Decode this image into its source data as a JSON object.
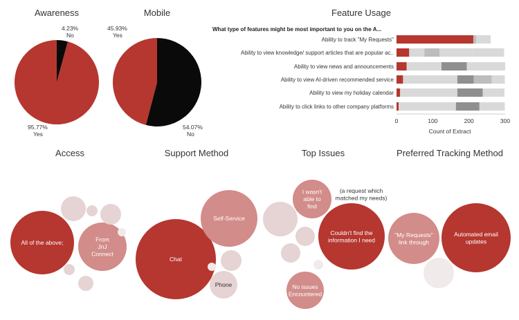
{
  "colors": {
    "red": "#b5372f",
    "black": "#0a0a0a",
    "pink": "#d28c89",
    "pale": "#e6d3d3",
    "faint": "#f1eaea",
    "bar_grey_light": "#d9d9d9",
    "bar_grey_mid": "#bdbdbd",
    "bar_grey_dark": "#8f8f8f"
  },
  "chart_data": [
    {
      "type": "pie",
      "title": "Awareness",
      "slices": [
        {
          "label": "Yes",
          "value": 95.77,
          "display": "95.77%",
          "color": "#b5372f"
        },
        {
          "label": "No",
          "value": 4.23,
          "display": "4.23%",
          "color": "#0a0a0a"
        }
      ]
    },
    {
      "type": "pie",
      "title": "Mobile",
      "slices": [
        {
          "label": "Yes",
          "value": 45.93,
          "display": "45.93%",
          "color": "#b5372f"
        },
        {
          "label": "No",
          "value": 54.07,
          "display": "54.07%",
          "color": "#0a0a0a"
        }
      ]
    },
    {
      "type": "bar",
      "title": "Feature Usage",
      "row_header": "What type of features might be most important to you on the A...",
      "xlabel": "Count of Extract",
      "xlim": [
        0,
        300
      ],
      "xticks": [
        0,
        100,
        200,
        300
      ],
      "categories": [
        "Ability to track \"My Requests\"",
        "Ability to view knowledge/ support articles that are popular ac..",
        "Ability to view news and announcements",
        "Ability to view AI-driven recommended service",
        "Ability to view my holiday calendar",
        "Ability to click links to other company platforms"
      ],
      "segments": [
        [
          {
            "value": 212,
            "tone": "red"
          },
          {
            "value": 8,
            "tone": "mid"
          },
          {
            "value": 40,
            "tone": "light"
          }
        ],
        [
          {
            "value": 35,
            "tone": "red"
          },
          {
            "value": 42,
            "tone": "light"
          },
          {
            "value": 42,
            "tone": "mid"
          },
          {
            "value": 90,
            "tone": "light"
          },
          {
            "value": 88,
            "tone": "light"
          }
        ],
        [
          {
            "value": 28,
            "tone": "red"
          },
          {
            "value": 96,
            "tone": "light"
          },
          {
            "value": 70,
            "tone": "dark"
          },
          {
            "value": 110,
            "tone": "light"
          }
        ],
        [
          {
            "value": 18,
            "tone": "red"
          },
          {
            "value": 150,
            "tone": "light"
          },
          {
            "value": 45,
            "tone": "dark"
          },
          {
            "value": 50,
            "tone": "mid"
          },
          {
            "value": 36,
            "tone": "light"
          }
        ],
        [
          {
            "value": 10,
            "tone": "red"
          },
          {
            "value": 158,
            "tone": "light"
          },
          {
            "value": 70,
            "tone": "dark"
          },
          {
            "value": 60,
            "tone": "light"
          }
        ],
        [
          {
            "value": 6,
            "tone": "red"
          },
          {
            "value": 158,
            "tone": "light"
          },
          {
            "value": 65,
            "tone": "dark"
          },
          {
            "value": 70,
            "tone": "light"
          }
        ]
      ]
    },
    {
      "type": "bubble",
      "title": "Access",
      "bubbles": [
        {
          "label": "All of the above;",
          "tone": "red"
        },
        {
          "label": "From JnJ Connect",
          "tone": "pink"
        },
        {
          "label": "",
          "tone": "pale"
        },
        {
          "label": "",
          "tone": "pale"
        },
        {
          "label": "",
          "tone": "pale"
        },
        {
          "label": "",
          "tone": "pale"
        },
        {
          "label": "",
          "tone": "pale"
        },
        {
          "label": "",
          "tone": "faint"
        }
      ]
    },
    {
      "type": "bubble",
      "title": "Support Method",
      "bubbles": [
        {
          "label": "Chat",
          "tone": "red"
        },
        {
          "label": "Self-Service",
          "tone": "pink"
        },
        {
          "label": "Phone",
          "tone": "pale"
        },
        {
          "label": "",
          "tone": "pale"
        },
        {
          "label": "",
          "tone": "faint"
        }
      ]
    },
    {
      "type": "bubble",
      "title": "Top Issues",
      "bubbles": [
        {
          "label": "Couldn't find the information I need",
          "tone": "red"
        },
        {
          "label": "I wasn't able to find",
          "tone": "pink"
        },
        {
          "label": "No issues Encountered",
          "tone": "pink"
        },
        {
          "label": "(a request which matched my needs)",
          "tone": "none"
        },
        {
          "label": "",
          "tone": "pale"
        },
        {
          "label": "",
          "tone": "pale"
        },
        {
          "label": "",
          "tone": "pale"
        },
        {
          "label": "",
          "tone": "faint"
        }
      ]
    },
    {
      "type": "bubble",
      "title": "Preferred Tracking Method",
      "bubbles": [
        {
          "label": "Automated email updates",
          "tone": "red"
        },
        {
          "label": "\"My Requests\" link through",
          "tone": "pink"
        },
        {
          "label": "",
          "tone": "faint"
        }
      ]
    }
  ]
}
